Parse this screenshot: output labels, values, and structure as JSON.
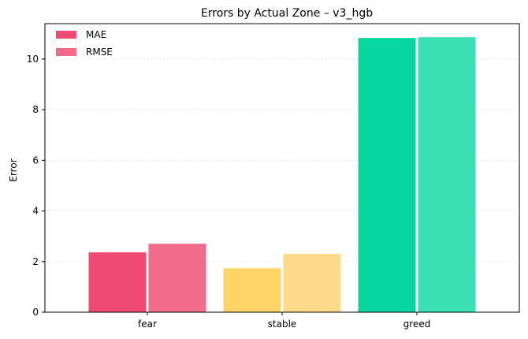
{
  "chart_data": {
    "type": "bar",
    "title": "Errors by Actual Zone – v3_hgb",
    "xlabel": "",
    "ylabel": "Error",
    "categories": [
      "fear",
      "stable",
      "greed"
    ],
    "series": [
      {
        "name": "MAE",
        "values": [
          2.38,
          1.75,
          10.85
        ]
      },
      {
        "name": "RMSE",
        "values": [
          2.72,
          2.32,
          10.88
        ]
      }
    ],
    "ylim": [
      0,
      11.4
    ],
    "yticks": [
      0,
      2,
      4,
      6,
      8,
      10
    ],
    "grid": true,
    "legend_position": "top-left",
    "colors": {
      "fear": [
        "#ef4a72",
        "#f26b8a"
      ],
      "stable": [
        "#fed467",
        "#fdda8a"
      ],
      "greed": [
        "#07d69f",
        "#3adfb4"
      ],
      "legend": [
        "#ef4a72",
        "#f26b8a"
      ]
    }
  }
}
